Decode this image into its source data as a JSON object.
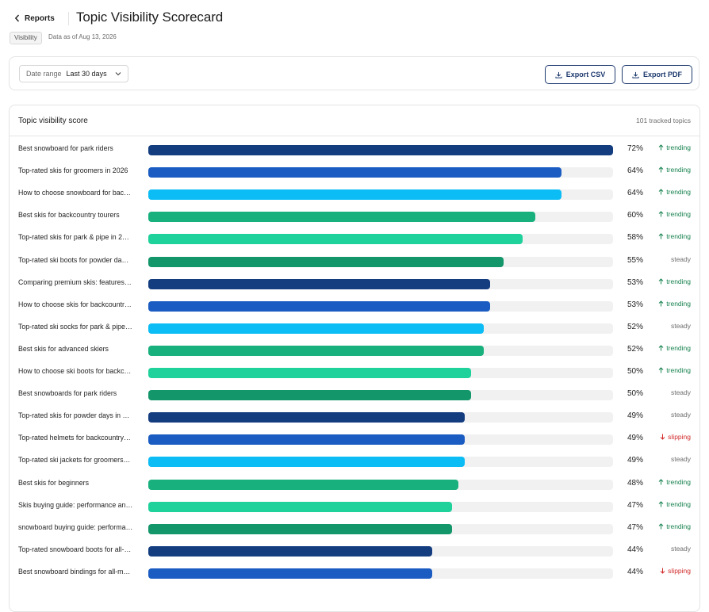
{
  "header": {
    "back_label": "Reports",
    "title": "Topic Visibility Scorecard",
    "badge": "Visibility",
    "data_as_of": "Data as of Aug 13, 2026"
  },
  "toolbar": {
    "date_range_label": "Date range",
    "date_range_value": "Last 30 days",
    "export_csv": "Export CSV",
    "export_pdf": "Export PDF"
  },
  "card": {
    "title": "Topic visibility score",
    "tracked": "101 tracked topics"
  },
  "colors": [
    "#143d80",
    "#1a5cc2",
    "#0bbcf5",
    "#18b07d",
    "#1fd19b",
    "#13966a"
  ],
  "rows": [
    {
      "label": "Best snowboard for park riders",
      "value": 72,
      "pct": "72%",
      "status": "trending",
      "status_label": "trending",
      "color": "#143d80"
    },
    {
      "label": "Top-rated skis for groomers in 2026",
      "value": 64,
      "pct": "64%",
      "status": "trending",
      "status_label": "trending",
      "color": "#1a5cc2"
    },
    {
      "label": "How to choose snowboard for bac…",
      "value": 64,
      "pct": "64%",
      "status": "trending",
      "status_label": "trending",
      "color": "#0bbcf5"
    },
    {
      "label": "Best skis for backcountry tourers",
      "value": 60,
      "pct": "60%",
      "status": "trending",
      "status_label": "trending",
      "color": "#18b07d"
    },
    {
      "label": "Top-rated skis for park & pipe in 2…",
      "value": 58,
      "pct": "58%",
      "status": "trending",
      "status_label": "trending",
      "color": "#1fd19b"
    },
    {
      "label": "Top-rated ski boots for powder da…",
      "value": 55,
      "pct": "55%",
      "status": "steady",
      "status_label": "steady",
      "color": "#13966a"
    },
    {
      "label": "Comparing premium skis: features…",
      "value": 53,
      "pct": "53%",
      "status": "trending",
      "status_label": "trending",
      "color": "#143d80"
    },
    {
      "label": "How to choose skis for backcountr…",
      "value": 53,
      "pct": "53%",
      "status": "trending",
      "status_label": "trending",
      "color": "#1a5cc2"
    },
    {
      "label": "Top-rated ski socks for park & pipe…",
      "value": 52,
      "pct": "52%",
      "status": "steady",
      "status_label": "steady",
      "color": "#0bbcf5"
    },
    {
      "label": "Best skis for advanced skiers",
      "value": 52,
      "pct": "52%",
      "status": "trending",
      "status_label": "trending",
      "color": "#18b07d"
    },
    {
      "label": "How to choose ski boots for backc…",
      "value": 50,
      "pct": "50%",
      "status": "trending",
      "status_label": "trending",
      "color": "#1fd19b"
    },
    {
      "label": "Best snowboards for park riders",
      "value": 50,
      "pct": "50%",
      "status": "steady",
      "status_label": "steady",
      "color": "#13966a"
    },
    {
      "label": "Top-rated skis for powder days in …",
      "value": 49,
      "pct": "49%",
      "status": "steady",
      "status_label": "steady",
      "color": "#143d80"
    },
    {
      "label": "Top-rated helmets for backcountry…",
      "value": 49,
      "pct": "49%",
      "status": "slipping",
      "status_label": "slipping",
      "color": "#1a5cc2"
    },
    {
      "label": "Top-rated ski jackets for groomers…",
      "value": 49,
      "pct": "49%",
      "status": "steady",
      "status_label": "steady",
      "color": "#0bbcf5"
    },
    {
      "label": "Best skis for beginners",
      "value": 48,
      "pct": "48%",
      "status": "trending",
      "status_label": "trending",
      "color": "#18b07d"
    },
    {
      "label": "Skis buying guide: performance an…",
      "value": 47,
      "pct": "47%",
      "status": "trending",
      "status_label": "trending",
      "color": "#1fd19b"
    },
    {
      "label": "snowboard buying guide: performa…",
      "value": 47,
      "pct": "47%",
      "status": "trending",
      "status_label": "trending",
      "color": "#13966a"
    },
    {
      "label": "Top-rated snowboard boots for all-…",
      "value": 44,
      "pct": "44%",
      "status": "steady",
      "status_label": "steady",
      "color": "#143d80"
    },
    {
      "label": "Best snowboard bindings for all-m…",
      "value": 44,
      "pct": "44%",
      "status": "slipping",
      "status_label": "slipping",
      "color": "#1a5cc2"
    }
  ],
  "scale_max": 72
}
